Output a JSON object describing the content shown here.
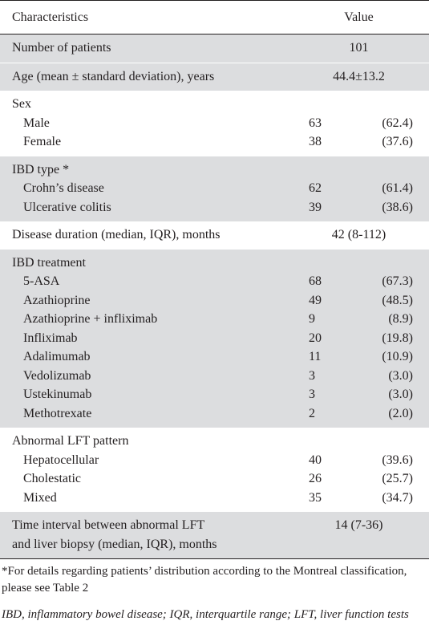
{
  "header": {
    "col1": "Characteristics",
    "col2": "Value"
  },
  "rows": {
    "patients": {
      "label": "Number of patients",
      "value": "101"
    },
    "age": {
      "label": "Age (mean ± standard deviation), years",
      "value": "44.4±13.2"
    },
    "sex": {
      "label": "Sex",
      "items": [
        {
          "label": "Male",
          "n": "63",
          "pct": "(62.4)"
        },
        {
          "label": "Female",
          "n": "38",
          "pct": "(37.6)"
        }
      ]
    },
    "ibd_type": {
      "label": "IBD type *",
      "items": [
        {
          "label": "Crohn’s disease",
          "n": "62",
          "pct": "(61.4)"
        },
        {
          "label": "Ulcerative colitis",
          "n": "39",
          "pct": "(38.6)"
        }
      ]
    },
    "duration": {
      "label": "Disease duration (median, IQR), months",
      "value": "42 (8-112)"
    },
    "treatment": {
      "label": "IBD treatment",
      "items": [
        {
          "label": "5-ASA",
          "n": "68",
          "pct": "(67.3)"
        },
        {
          "label": "Azathioprine",
          "n": "49",
          "pct": "(48.5)"
        },
        {
          "label": "Azathioprine + infliximab",
          "n": "9",
          "pct": "(8.9)"
        },
        {
          "label": "Infliximab",
          "n": "20",
          "pct": "(19.8)"
        },
        {
          "label": "Adalimumab",
          "n": "11",
          "pct": "(10.9)"
        },
        {
          "label": "Vedolizumab",
          "n": "3",
          "pct": "(3.0)"
        },
        {
          "label": "Ustekinumab",
          "n": "3",
          "pct": "(3.0)"
        },
        {
          "label": "Methotrexate",
          "n": "2",
          "pct": "(2.0)"
        }
      ]
    },
    "lft": {
      "label": "Abnormal LFT pattern",
      "items": [
        {
          "label": "Hepatocellular",
          "n": "40",
          "pct": "(39.6)"
        },
        {
          "label": "Cholestatic",
          "n": "26",
          "pct": "(25.7)"
        },
        {
          "label": "Mixed",
          "n": "35",
          "pct": "(34.7)"
        }
      ]
    },
    "interval": {
      "label_line1": "Time interval between abnormal LFT",
      "label_line2": "and liver biopsy (median, IQR), months",
      "value": "14 (7-36)"
    }
  },
  "footnotes": {
    "note1": "*For details regarding patients’ distribution according to the Montreal classification, please see Table 2",
    "note2": "IBD, inflammatory bowel disease; IQR, interquartile range; LFT, liver function tests"
  }
}
